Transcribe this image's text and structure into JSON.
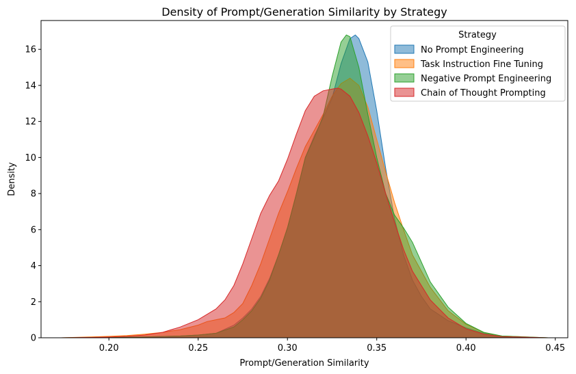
{
  "chart_data": {
    "type": "area",
    "title": "Density of Prompt/Generation Similarity by Strategy",
    "xlabel": "Prompt/Generation Similarity",
    "ylabel": "Density",
    "xlim": [
      0.162,
      0.457
    ],
    "ylim": [
      0,
      17.6
    ],
    "xticks": [
      0.2,
      0.25,
      0.3,
      0.35,
      0.4,
      0.45
    ],
    "xtick_labels": [
      "0.20",
      "0.25",
      "0.30",
      "0.35",
      "0.40",
      "0.45"
    ],
    "yticks": [
      0,
      2,
      4,
      6,
      8,
      10,
      12,
      14,
      16
    ],
    "ytick_labels": [
      "0",
      "2",
      "4",
      "6",
      "8",
      "10",
      "12",
      "14",
      "16"
    ],
    "grid": false,
    "legend": {
      "title": "Strategy",
      "placement": "top-right"
    },
    "series": [
      {
        "name": "No Prompt Engineering",
        "color": "#1f77b4",
        "x": [
          0.173,
          0.2,
          0.22,
          0.24,
          0.25,
          0.26,
          0.27,
          0.275,
          0.28,
          0.285,
          0.29,
          0.295,
          0.3,
          0.305,
          0.31,
          0.315,
          0.32,
          0.325,
          0.33,
          0.335,
          0.338,
          0.34,
          0.345,
          0.35,
          0.355,
          0.36,
          0.365,
          0.37,
          0.375,
          0.38,
          0.39,
          0.4,
          0.41,
          0.42,
          0.43,
          0.446
        ],
        "y": [
          0,
          0.02,
          0.05,
          0.1,
          0.15,
          0.25,
          0.7,
          1.1,
          1.6,
          2.3,
          3.3,
          4.6,
          6.1,
          8.0,
          10.0,
          11.2,
          12.2,
          13.3,
          15.2,
          16.6,
          16.8,
          16.6,
          15.3,
          12.6,
          9.4,
          6.6,
          4.6,
          3.2,
          2.3,
          1.6,
          0.95,
          0.55,
          0.25,
          0.1,
          0.03,
          0
        ]
      },
      {
        "name": "Task Instruction Fine Tuning",
        "color": "#ff7f0e",
        "x": [
          0.173,
          0.19,
          0.2,
          0.21,
          0.22,
          0.23,
          0.24,
          0.25,
          0.255,
          0.26,
          0.265,
          0.27,
          0.275,
          0.28,
          0.285,
          0.29,
          0.295,
          0.3,
          0.305,
          0.31,
          0.315,
          0.32,
          0.325,
          0.33,
          0.335,
          0.34,
          0.345,
          0.35,
          0.355,
          0.36,
          0.365,
          0.37,
          0.38,
          0.39,
          0.4,
          0.41,
          0.42,
          0.446
        ],
        "y": [
          0,
          0.05,
          0.08,
          0.12,
          0.2,
          0.3,
          0.45,
          0.7,
          0.9,
          1.0,
          1.1,
          1.4,
          1.9,
          2.9,
          4.1,
          5.5,
          6.9,
          8.1,
          9.4,
          10.6,
          11.5,
          12.4,
          13.4,
          14.1,
          14.4,
          14.0,
          12.8,
          11.0,
          9.2,
          7.5,
          6.0,
          4.6,
          2.8,
          1.5,
          0.75,
          0.3,
          0.1,
          0
        ]
      },
      {
        "name": "Negative Prompt Engineering",
        "color": "#2ca02c",
        "x": [
          0.173,
          0.2,
          0.22,
          0.24,
          0.25,
          0.26,
          0.27,
          0.275,
          0.28,
          0.285,
          0.29,
          0.295,
          0.3,
          0.305,
          0.31,
          0.315,
          0.32,
          0.325,
          0.33,
          0.333,
          0.335,
          0.34,
          0.345,
          0.35,
          0.355,
          0.36,
          0.365,
          0.37,
          0.375,
          0.38,
          0.39,
          0.4,
          0.41,
          0.42,
          0.446
        ],
        "y": [
          0,
          0.02,
          0.05,
          0.1,
          0.15,
          0.25,
          0.6,
          1.0,
          1.5,
          2.2,
          3.2,
          4.6,
          6.1,
          8.0,
          10.0,
          11.1,
          12.3,
          14.5,
          16.4,
          16.8,
          16.7,
          15.0,
          12.4,
          10.0,
          8.0,
          6.8,
          6.1,
          5.3,
          4.2,
          3.1,
          1.7,
          0.8,
          0.3,
          0.1,
          0
        ]
      },
      {
        "name": "Chain of Thought Prompting",
        "color": "#d62728",
        "x": [
          0.173,
          0.19,
          0.2,
          0.21,
          0.22,
          0.23,
          0.24,
          0.25,
          0.26,
          0.265,
          0.27,
          0.275,
          0.28,
          0.285,
          0.29,
          0.295,
          0.3,
          0.305,
          0.31,
          0.315,
          0.32,
          0.325,
          0.328,
          0.33,
          0.335,
          0.34,
          0.345,
          0.35,
          0.355,
          0.36,
          0.365,
          0.37,
          0.38,
          0.39,
          0.4,
          0.41,
          0.42,
          0.446
        ],
        "y": [
          0,
          0.02,
          0.04,
          0.08,
          0.15,
          0.3,
          0.6,
          1.0,
          1.6,
          2.1,
          2.9,
          4.1,
          5.5,
          6.9,
          7.9,
          8.7,
          9.9,
          11.3,
          12.6,
          13.4,
          13.7,
          13.8,
          13.85,
          13.8,
          13.4,
          12.5,
          11.2,
          9.7,
          8.0,
          6.4,
          4.9,
          3.7,
          2.1,
          1.1,
          0.5,
          0.2,
          0.07,
          0
        ]
      }
    ]
  }
}
